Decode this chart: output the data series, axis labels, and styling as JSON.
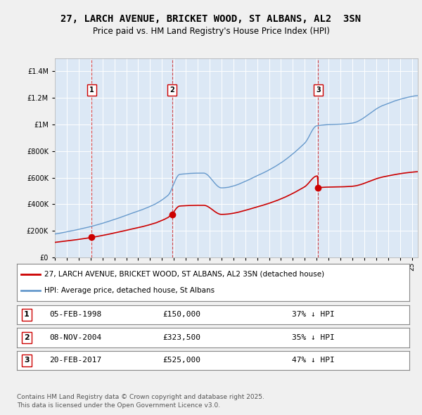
{
  "title": "27, LARCH AVENUE, BRICKET WOOD, ST ALBANS, AL2  3SN",
  "subtitle": "Price paid vs. HM Land Registry's House Price Index (HPI)",
  "legend_label_red": "27, LARCH AVENUE, BRICKET WOOD, ST ALBANS, AL2 3SN (detached house)",
  "legend_label_blue": "HPI: Average price, detached house, St Albans",
  "footer1": "Contains HM Land Registry data © Crown copyright and database right 2025.",
  "footer2": "This data is licensed under the Open Government Licence v3.0.",
  "sale1_label": "1",
  "sale1_date_str": "05-FEB-1998",
  "sale1_price_str": "£150,000",
  "sale1_hpi_str": "37% ↓ HPI",
  "sale1_year": 1998.096,
  "sale1_price": 150000,
  "sale2_label": "2",
  "sale2_date_str": "08-NOV-2004",
  "sale2_price_str": "£323,500",
  "sale2_hpi_str": "35% ↓ HPI",
  "sale2_year": 2004.855,
  "sale2_price": 323500,
  "sale3_label": "3",
  "sale3_date_str": "20-FEB-2017",
  "sale3_price_str": "£525,000",
  "sale3_hpi_str": "47% ↓ HPI",
  "sale3_year": 2017.136,
  "sale3_price": 525000,
  "bg_color": "#e8f0f8",
  "plot_bg": "#dce8f5",
  "red_color": "#cc0000",
  "blue_color": "#6699cc",
  "vline_color": "#cc0000",
  "ylim_max": 1500000,
  "ylim_min": 0,
  "xlim_min": 1995.0,
  "xlim_max": 2025.5
}
